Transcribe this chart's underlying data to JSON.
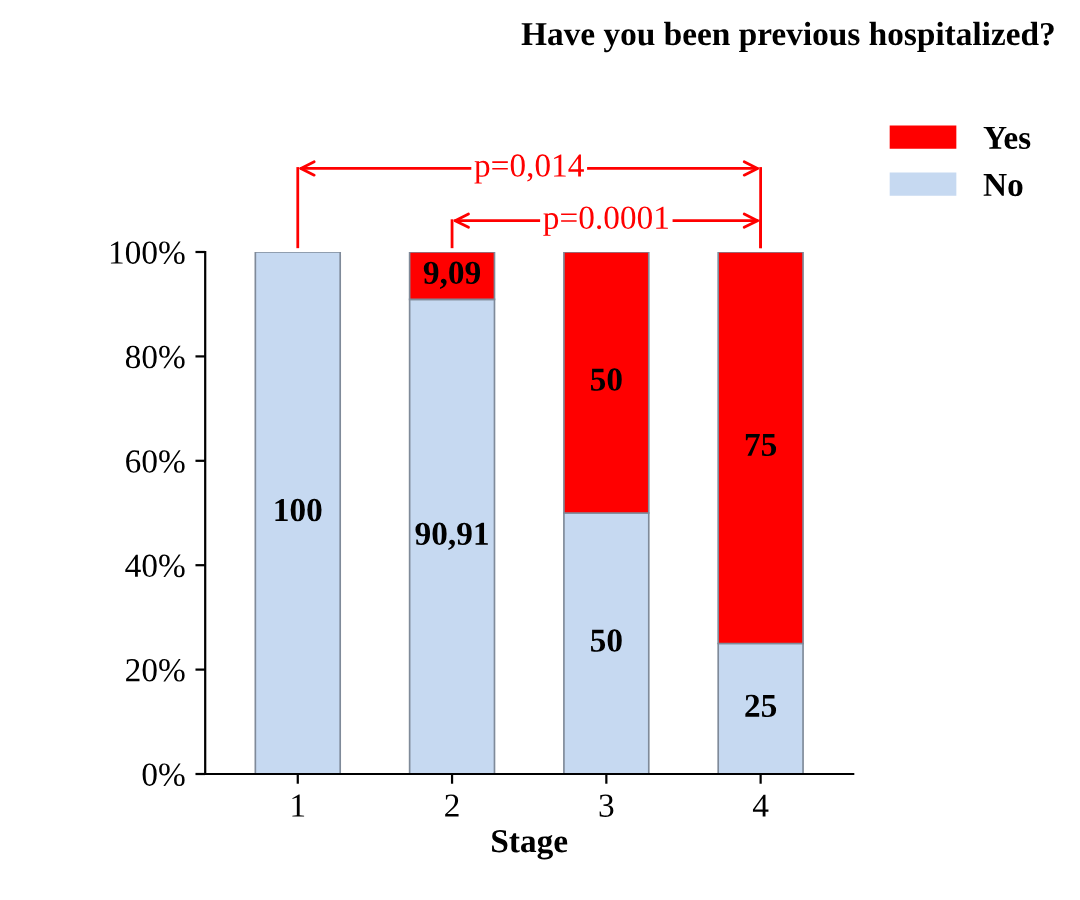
{
  "chart_data": {
    "type": "bar",
    "stacked": true,
    "title": "Have you been previous hospitalized?",
    "xlabel": "Stage",
    "categories": [
      "1",
      "2",
      "3",
      "4"
    ],
    "series": [
      {
        "name": "No",
        "color": "#c6d9f1",
        "values": [
          100,
          90.91,
          50,
          25
        ],
        "value_labels": [
          "100",
          "90,91",
          "50",
          "25"
        ]
      },
      {
        "name": "Yes",
        "color": "#ff0000",
        "values": [
          0,
          9.09,
          50,
          75
        ],
        "value_labels": [
          null,
          "9,09",
          "50",
          "75"
        ]
      }
    ],
    "ylim": [
      0,
      100
    ],
    "yticks": [
      {
        "value": 0,
        "label": "0%"
      },
      {
        "value": 20,
        "label": "20%"
      },
      {
        "value": 40,
        "label": "40%"
      },
      {
        "value": 60,
        "label": "60%"
      },
      {
        "value": 80,
        "label": "80%"
      },
      {
        "value": 100,
        "label": "100%"
      }
    ],
    "annotations": [
      "p=0,014",
      "p=0.0001"
    ],
    "legend": "top right",
    "grid": false
  }
}
